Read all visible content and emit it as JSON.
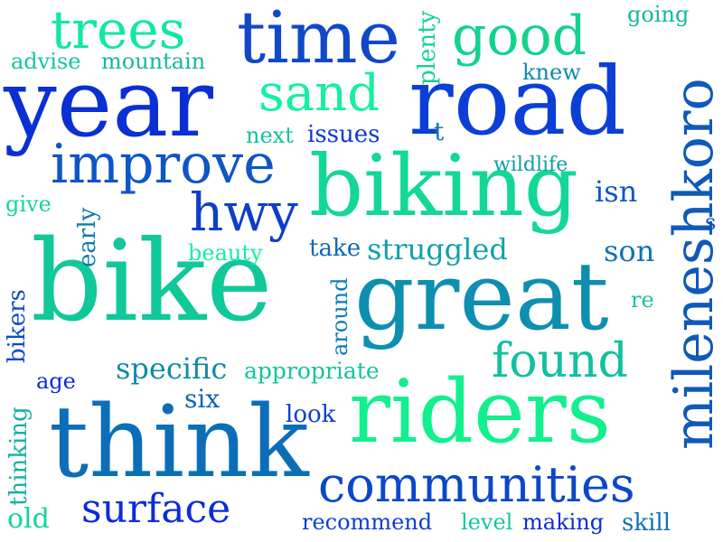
{
  "words": {
    "w_year": {
      "text": "year",
      "color": "#0a2fd4"
    },
    "w_road": {
      "text": "road",
      "color": "#0b3fd6"
    },
    "w_time": {
      "text": "time",
      "color": "#1048c8"
    },
    "w_trees": {
      "text": "trees",
      "color": "#12e8a0"
    },
    "w_good": {
      "text": "good",
      "color": "#14d28e"
    },
    "w_sand": {
      "text": "sand",
      "color": "#16f0a0"
    },
    "w_improve": {
      "text": "improve",
      "color": "#0e56c6"
    },
    "w_biking": {
      "text": "biking",
      "color": "#12d893"
    },
    "w_hwy": {
      "text": "hwy",
      "color": "#0e3ec8"
    },
    "w_bike": {
      "text": "bike",
      "color": "#10c898"
    },
    "w_great": {
      "text": "great",
      "color": "#0e8fb0"
    },
    "w_mileneshkoro": {
      "text": "mileneshkoro",
      "color": "#0f5ab8"
    },
    "w_riders": {
      "text": "riders",
      "color": "#12f08e"
    },
    "w_think": {
      "text": "think",
      "color": "#0c6eb8"
    },
    "w_communities": {
      "text": "communities",
      "color": "#0b48c8"
    },
    "w_surface": {
      "text": "surface",
      "color": "#0c2cd8"
    },
    "w_found": {
      "text": "found",
      "color": "#11c09e"
    },
    "w_specific": {
      "text": "specific",
      "color": "#0e8aa8"
    },
    "w_appropriate": {
      "text": "appropriate",
      "color": "#12c4a0"
    },
    "w_struggled": {
      "text": "struggled",
      "color": "#10a0ac"
    },
    "w_around": {
      "text": "around",
      "color": "#0f7cb4"
    },
    "w_early": {
      "text": "early",
      "color": "#0e7ab0"
    },
    "w_bikers": {
      "text": "bikers",
      "color": "#0e4cc6"
    },
    "w_thinking": {
      "text": "thinking",
      "color": "#12b0a2"
    },
    "w_plenty": {
      "text": "plenty",
      "color": "#14d294"
    },
    "w_advise": {
      "text": "advise",
      "color": "#12c89a"
    },
    "w_mountain": {
      "text": "mountain",
      "color": "#14b8a0"
    },
    "w_going": {
      "text": "going",
      "color": "#12b89e"
    },
    "w_knew": {
      "text": "knew",
      "color": "#0f88ae"
    },
    "w_next": {
      "text": "next",
      "color": "#12c49c"
    },
    "w_issues": {
      "text": "issues",
      "color": "#0b3ad0"
    },
    "w_t": {
      "text": "t",
      "color": "#0e7cb4"
    },
    "w_wildlife": {
      "text": "wildlife",
      "color": "#129cac"
    },
    "w_isn": {
      "text": "isn",
      "color": "#0e5ac2"
    },
    "w_s": {
      "text": "s",
      "color": "#0c4ccc"
    },
    "w_give": {
      "text": "give",
      "color": "#14d89a"
    },
    "w_beauty": {
      "text": "beauty",
      "color": "#16eea2"
    },
    "w_take": {
      "text": "take",
      "color": "#0e6ab8"
    },
    "w_son": {
      "text": "son",
      "color": "#0e74b2"
    },
    "w_re": {
      "text": "re",
      "color": "#14c4a2"
    },
    "w_age": {
      "text": "age",
      "color": "#0b2ad6"
    },
    "w_six": {
      "text": "six",
      "color": "#0e62bc"
    },
    "w_look": {
      "text": "look",
      "color": "#0c40cc"
    },
    "w_old": {
      "text": "old",
      "color": "#12d49c"
    },
    "w_recommend": {
      "text": "recommend",
      "color": "#0c3ed2"
    },
    "w_level": {
      "text": "level",
      "color": "#14c6a0"
    },
    "w_making": {
      "text": "making",
      "color": "#0c2ed8"
    },
    "w_skill": {
      "text": "skill",
      "color": "#0e74b4"
    }
  }
}
